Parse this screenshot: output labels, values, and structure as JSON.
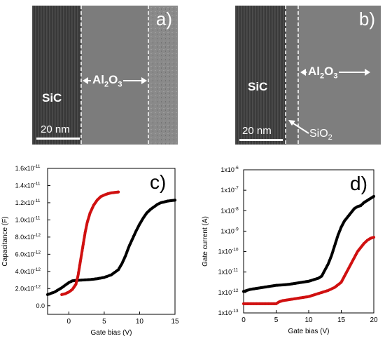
{
  "images": {
    "a": {
      "letter": "a)",
      "material1": "SiC",
      "material2_base": "Al",
      "material2_sub1": "2",
      "material2_mid": "O",
      "material2_sub2": "3",
      "scale": "20 nm"
    },
    "b": {
      "letter": "b)",
      "material1": "SiC",
      "material2_base": "Al",
      "material2_sub1": "2",
      "material2_mid": "O",
      "material2_sub2": "3",
      "interlayer_base": "SiO",
      "interlayer_sub": "2",
      "scale": "20 nm"
    }
  },
  "colors": {
    "black_series": "#000000",
    "red_series": "#d01010",
    "tem_dark": "#3a3a3a",
    "tem_mid": "#7a7a7a",
    "tem_light": "#8e8e8e"
  },
  "chart_data": [
    {
      "type": "scatter",
      "letter": "c)",
      "xlabel": "Gate bias (V)",
      "ylabel": "Capacitance (F)",
      "xlim": [
        -3,
        15
      ],
      "ylim": [
        -1e-12,
        1.6e-11
      ],
      "xticks": [
        "0",
        "5",
        "10",
        "15"
      ],
      "xtick_values": [
        0,
        5,
        10,
        15
      ],
      "ytick_values": [
        0,
        2e-12,
        4e-12,
        6e-12,
        8e-12,
        1e-11,
        1.2e-11,
        1.4e-11,
        1.6e-11
      ],
      "ytick_mant": [
        "0.0",
        "2.0x10",
        "4.0x10",
        "6.0x10",
        "8.0x10",
        "1.0x10",
        "1.2x10",
        "1.4x10",
        "1.6x10"
      ],
      "ytick_exp": [
        "",
        "-12",
        "-12",
        "-12",
        "-12",
        "-11",
        "-11",
        "-11",
        "-11"
      ],
      "series": [
        {
          "color": "black",
          "x": [
            -3,
            -2,
            -1,
            0,
            0.5,
            1,
            2,
            3,
            4,
            5,
            6,
            7,
            7.5,
            8,
            8.5,
            9,
            9.5,
            10,
            10.5,
            11,
            11.5,
            12,
            12.5,
            13,
            13.5,
            14,
            14.5,
            15
          ],
          "y": [
            1.3e-12,
            1.6e-12,
            2.1e-12,
            2.7e-12,
            2.9e-12,
            2.95e-12,
            3e-12,
            3.05e-12,
            3.15e-12,
            3.3e-12,
            3.6e-12,
            4.2e-12,
            4.9e-12,
            5.8e-12,
            6.9e-12,
            7.8e-12,
            8.7e-12,
            9.5e-12,
            1.02e-11,
            1.08e-11,
            1.12e-11,
            1.15e-11,
            1.18e-11,
            1.2e-11,
            1.21e-11,
            1.22e-11,
            1.225e-11,
            1.23e-11
          ]
        },
        {
          "color": "red",
          "x": [
            -1,
            -0.5,
            0,
            0.5,
            1,
            1.3,
            1.6,
            2,
            2.3,
            2.6,
            3,
            3.5,
            4,
            4.5,
            5,
            5.5,
            6,
            6.5,
            7
          ],
          "y": [
            1.3e-12,
            1.4e-12,
            1.6e-12,
            1.9e-12,
            2.5e-12,
            3.5e-12,
            5e-12,
            7e-12,
            8.5e-12,
            9.7e-12,
            1.08e-11,
            1.17e-11,
            1.23e-11,
            1.27e-11,
            1.29e-11,
            1.305e-11,
            1.315e-11,
            1.32e-11,
            1.325e-11
          ]
        }
      ]
    },
    {
      "type": "scatter",
      "letter": "d)",
      "xlabel": "Gate bias (V)",
      "ylabel": "Gate current (A)",
      "scale": "log",
      "xlim": [
        0,
        20
      ],
      "ylim_exp": [
        -13,
        -6
      ],
      "xticks": [
        "0",
        "5",
        "10",
        "15",
        "20"
      ],
      "xtick_values": [
        0,
        5,
        10,
        15,
        20
      ],
      "ytick_mant": [
        "1x10",
        "1x10",
        "1x10",
        "1x10",
        "1x10",
        "1x10",
        "1x10",
        "1x10"
      ],
      "ytick_exp": [
        "-13",
        "-12",
        "-11",
        "-10",
        "-9",
        "-8",
        "-7",
        "-6"
      ],
      "ytick_values": [
        -13,
        -12,
        -11,
        -10,
        -9,
        -8,
        -7,
        -6
      ],
      "series": [
        {
          "color": "black",
          "x": [
            0,
            1,
            2,
            3,
            4,
            5,
            6,
            7,
            8,
            9,
            10,
            11,
            11.5,
            12,
            12.5,
            13,
            13.5,
            14,
            14.5,
            15,
            15.5,
            16,
            16.5,
            17,
            17.5,
            18,
            18.5,
            19,
            19.5,
            20
          ],
          "y": [
            -11.95,
            -11.85,
            -11.8,
            -11.75,
            -11.7,
            -11.65,
            -11.63,
            -11.6,
            -11.55,
            -11.5,
            -11.45,
            -11.35,
            -11.3,
            -11.2,
            -10.9,
            -10.6,
            -10.2,
            -9.7,
            -9.2,
            -8.8,
            -8.5,
            -8.3,
            -8.1,
            -7.9,
            -7.8,
            -7.75,
            -7.6,
            -7.5,
            -7.4,
            -7.3
          ]
        },
        {
          "color": "red",
          "x": [
            0,
            1,
            2,
            3,
            4,
            5,
            5.5,
            6,
            7,
            8,
            9,
            10,
            11,
            12,
            13,
            14,
            15,
            15.5,
            16,
            16.5,
            17,
            17.5,
            18,
            18.5,
            19,
            19.5,
            20
          ],
          "y": [
            -12.55,
            -12.55,
            -12.55,
            -12.55,
            -12.55,
            -12.55,
            -12.45,
            -12.4,
            -12.35,
            -12.3,
            -12.25,
            -12.2,
            -12.1,
            -12.0,
            -11.9,
            -11.75,
            -11.5,
            -11.2,
            -10.9,
            -10.6,
            -10.3,
            -10.0,
            -9.8,
            -9.6,
            -9.45,
            -9.35,
            -9.3
          ]
        }
      ]
    }
  ]
}
